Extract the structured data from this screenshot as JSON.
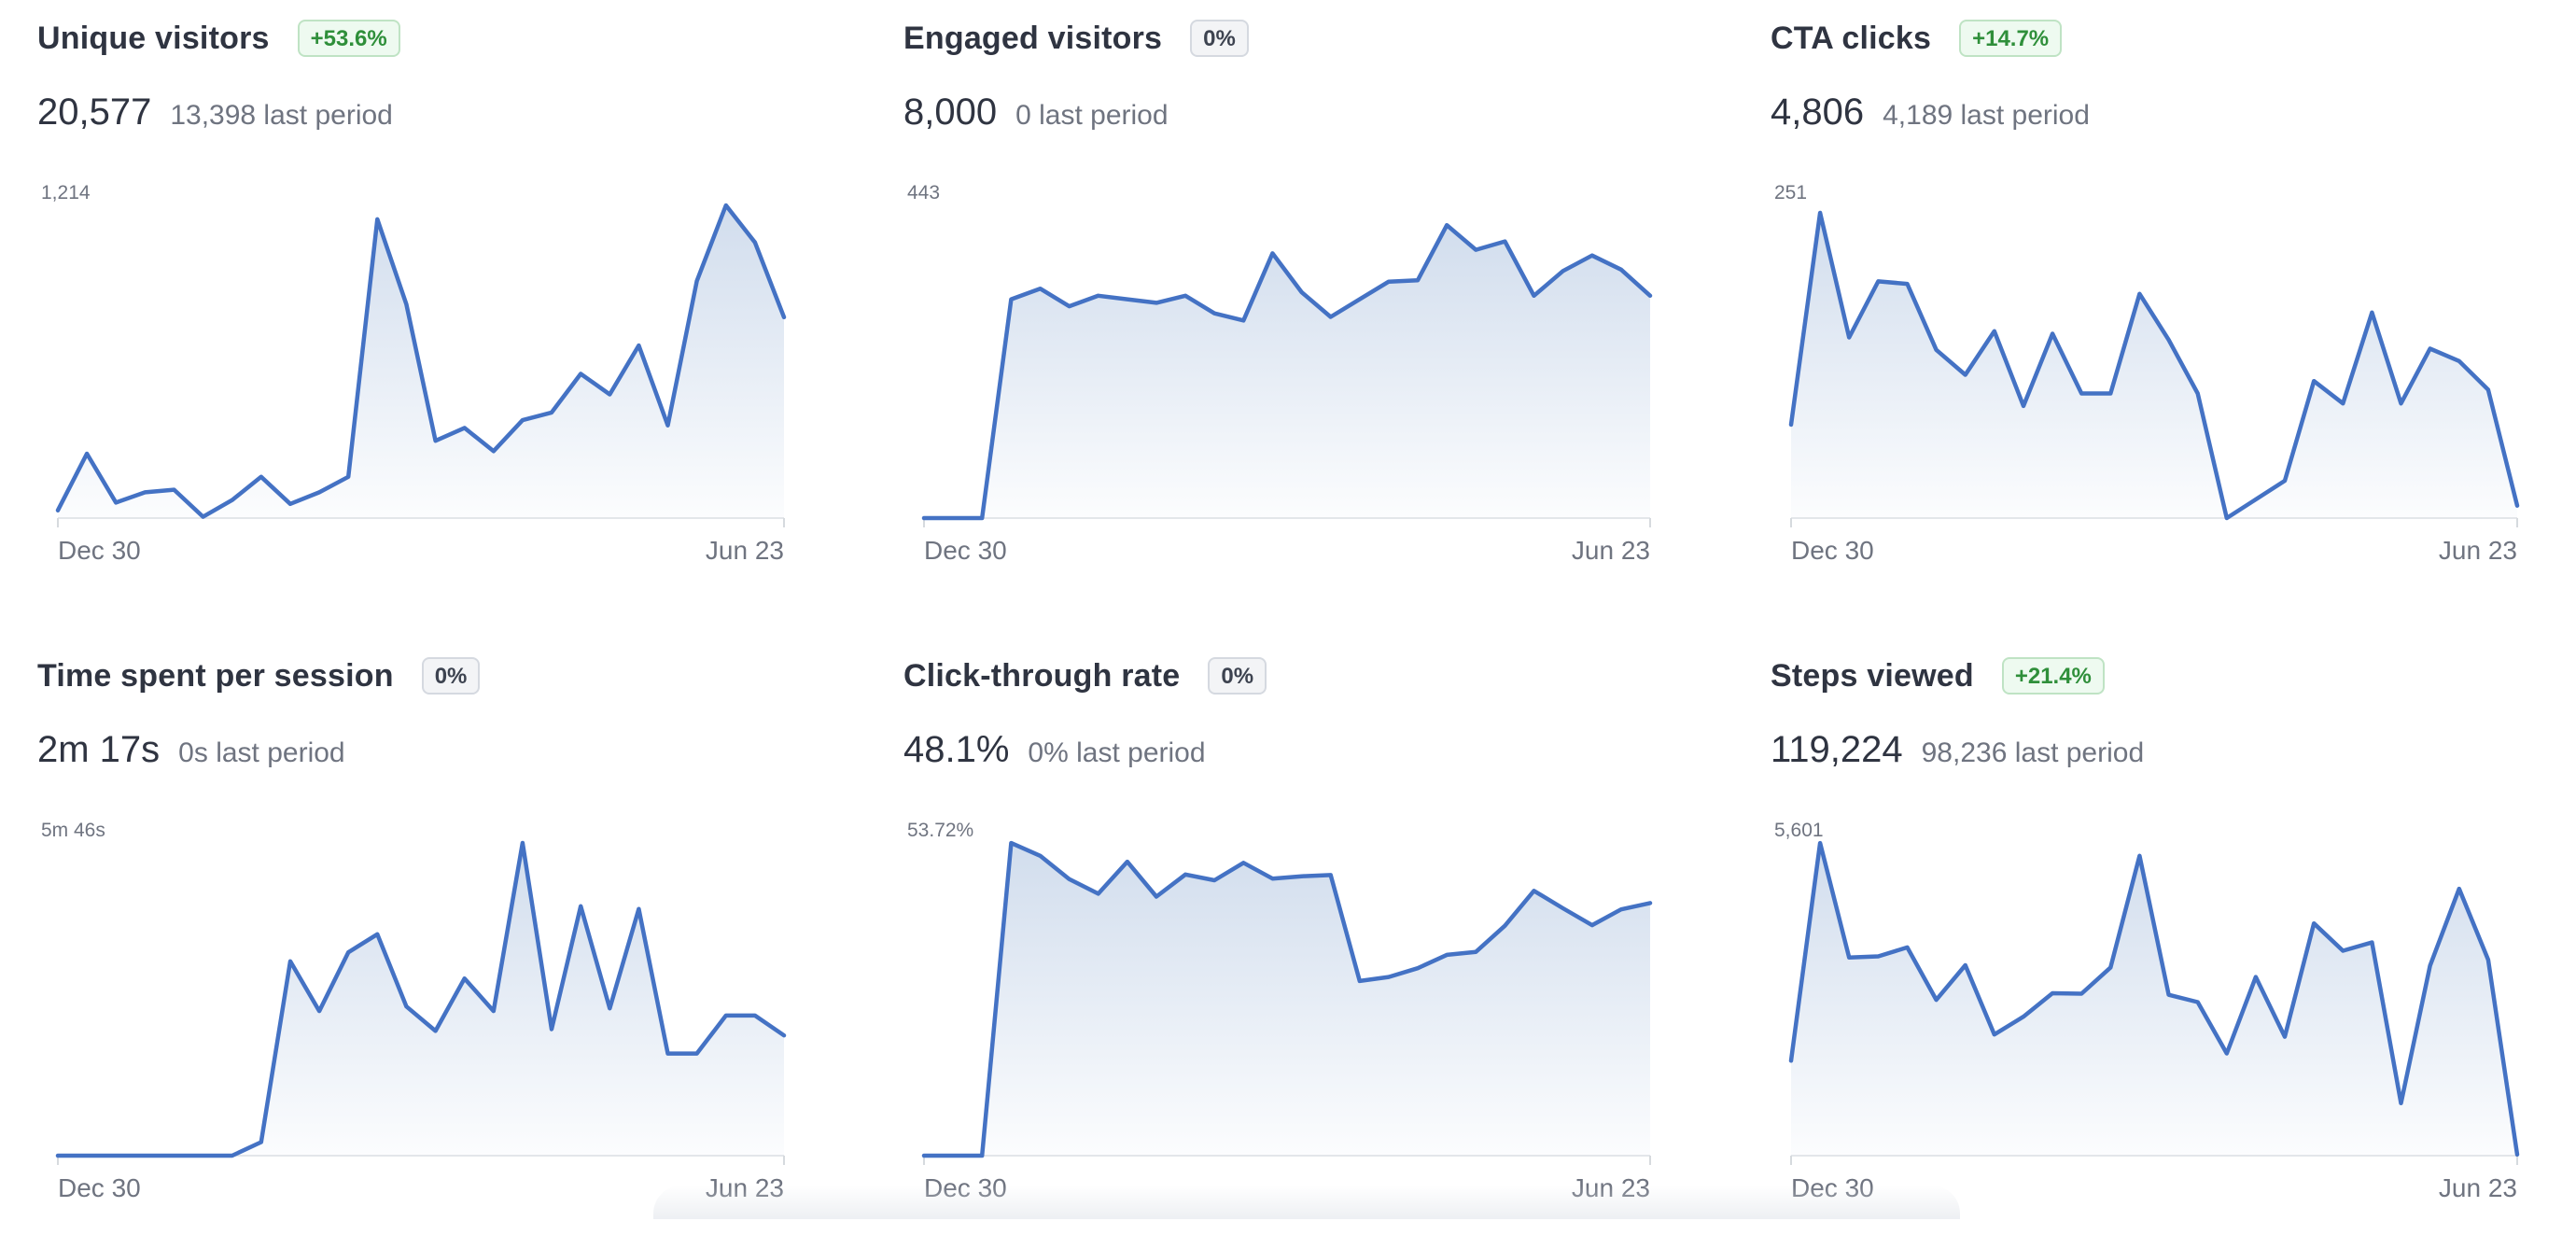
{
  "colors": {
    "line": "#4472c4",
    "area_top": "#c9d7ea",
    "badge_up_text": "#2f8f3a",
    "badge_neutral_text": "#3d4350"
  },
  "cards": [
    {
      "title": "Unique visitors",
      "badge": "+53.6%",
      "badge_kind": "up",
      "value": "20,577",
      "previous": "13,398 last period",
      "y_max_label": "1,214",
      "x_start": "Dec 30",
      "x_end": "Jun 23"
    },
    {
      "title": "Engaged visitors",
      "badge": "0%",
      "badge_kind": "neutral",
      "value": "8,000",
      "previous": "0 last period",
      "y_max_label": "443",
      "x_start": "Dec 30",
      "x_end": "Jun 23"
    },
    {
      "title": "CTA clicks",
      "badge": "+14.7%",
      "badge_kind": "up",
      "value": "4,806",
      "previous": "4,189 last period",
      "y_max_label": "251",
      "x_start": "Dec 30",
      "x_end": "Jun 23"
    },
    {
      "title": "Time spent per session",
      "badge": "0%",
      "badge_kind": "neutral",
      "value": "2m 17s",
      "previous": "0s last period",
      "y_max_label": "5m 46s",
      "x_start": "Dec 30",
      "x_end": "Jun 23"
    },
    {
      "title": "Click-through rate",
      "badge": "0%",
      "badge_kind": "neutral",
      "value": "48.1%",
      "previous": "0% last period",
      "y_max_label": "53.72%",
      "x_start": "Dec 30",
      "x_end": "Jun 23"
    },
    {
      "title": "Steps viewed",
      "badge": "+21.4%",
      "badge_kind": "up",
      "value": "119,224",
      "previous": "98,236 last period",
      "y_max_label": "5,601",
      "x_start": "Dec 30",
      "x_end": "Jun 23"
    }
  ],
  "chart_data": [
    {
      "type": "area",
      "title": "Unique visitors",
      "xlim": [
        "Dec 30",
        "Jun 23"
      ],
      "ylim": [
        0,
        1214
      ],
      "series": [
        {
          "values": [
            30,
            250,
            60,
            100,
            110,
            5,
            70,
            160,
            55,
            100,
            160,
            1160,
            830,
            300,
            350,
            260,
            380,
            410,
            560,
            480,
            670,
            360,
            920,
            1220,
            1070,
            780
          ]
        }
      ]
    },
    {
      "type": "area",
      "title": "Engaged visitors",
      "xlim": [
        "Dec 30",
        "Jun 23"
      ],
      "ylim": [
        0,
        443
      ],
      "series": [
        {
          "values": [
            0,
            0,
            0,
            310,
            325,
            300,
            315,
            310,
            305,
            315,
            290,
            280,
            375,
            320,
            285,
            310,
            335,
            337,
            415,
            380,
            392,
            315,
            350,
            372,
            352,
            315
          ]
        }
      ]
    },
    {
      "type": "area",
      "title": "CTA clicks",
      "xlim": [
        "Dec 30",
        "Jun 23"
      ],
      "ylim": [
        0,
        251
      ],
      "series": [
        {
          "values": [
            75,
            245,
            145,
            190,
            188,
            135,
            115,
            150,
            90,
            148,
            100,
            100,
            180,
            143,
            100,
            0,
            15,
            30,
            110,
            92,
            165,
            92,
            136,
            126,
            103,
            10
          ]
        }
      ]
    },
    {
      "type": "area",
      "title": "Time spent per session",
      "xlim": [
        "Dec 30",
        "Jun 23"
      ],
      "ylim": [
        "0s",
        "5m 46s"
      ],
      "series": [
        {
          "values": [
            0,
            0,
            0,
            0,
            0,
            0,
            0,
            15,
            215,
            160,
            225,
            245,
            165,
            138,
            196,
            160,
            346,
            140,
            276,
            163,
            273,
            113,
            113,
            155,
            155,
            133
          ]
        }
      ]
    },
    {
      "type": "area",
      "title": "Click-through rate",
      "xlim": [
        "Dec 30",
        "Jun 23"
      ],
      "ylim": [
        0,
        53.72
      ],
      "series": [
        {
          "values": [
            0,
            0,
            0,
            53.7,
            51.5,
            47.5,
            45,
            50.5,
            44.5,
            48.3,
            47.3,
            50.3,
            47.6,
            48,
            48.2,
            30,
            30.7,
            32.2,
            34.5,
            35,
            39.5,
            45.5,
            42.5,
            39.6,
            42.3,
            43.4
          ]
        }
      ]
    },
    {
      "type": "area",
      "title": "Steps viewed",
      "xlim": [
        "Dec 30",
        "Jun 23"
      ],
      "ylim": [
        0,
        5601
      ],
      "series": [
        {
          "values": [
            1700,
            5600,
            3550,
            3570,
            3730,
            2790,
            3410,
            2170,
            2490,
            2910,
            2900,
            3370,
            5370,
            2880,
            2750,
            1830,
            3200,
            2130,
            4160,
            3670,
            3820,
            940,
            3400,
            4780,
            3510,
            20
          ]
        }
      ]
    }
  ]
}
